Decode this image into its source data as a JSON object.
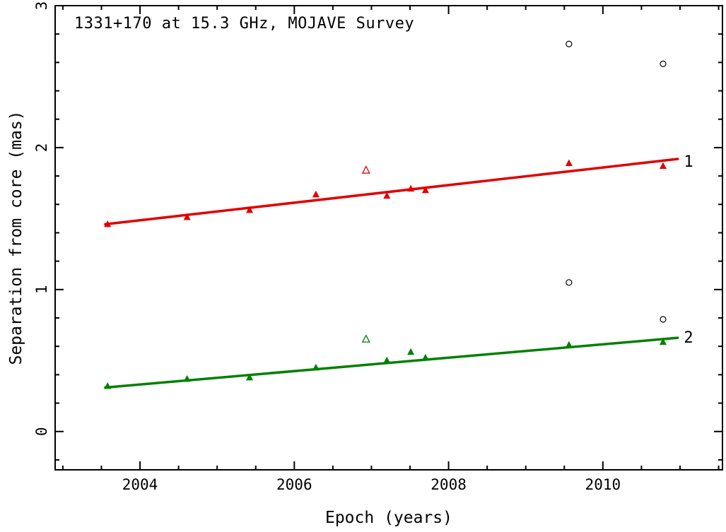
{
  "chart_data": {
    "type": "scatter",
    "title": "1331+170 at 15.3 GHz, MOJAVE Survey",
    "xlabel": "Epoch (years)",
    "ylabel": "Separation from core (mas)",
    "xlim": [
      2002.9,
      2011.55
    ],
    "ylim": [
      -0.27,
      3.0
    ],
    "xticks": [
      2004,
      2006,
      2008,
      2010
    ],
    "yticks": [
      0,
      1,
      2,
      3
    ],
    "x_minor_step": 0.5,
    "y_minor_step": 0.2,
    "grid": false,
    "frame_color": "#000000",
    "series": [
      {
        "name": "component-1",
        "color": "#e00000",
        "marker": "filled-triangle",
        "points": [
          [
            2003.58,
            1.46
          ],
          [
            2004.61,
            1.51
          ],
          [
            2005.42,
            1.56
          ],
          [
            2006.28,
            1.67
          ],
          [
            2007.2,
            1.66
          ],
          [
            2007.51,
            1.71
          ],
          [
            2007.7,
            1.7
          ],
          [
            2009.56,
            1.89
          ],
          [
            2010.78,
            1.87
          ]
        ],
        "fit_line": {
          "x": [
            2003.55,
            2010.97
          ],
          "y": [
            1.46,
            1.92
          ]
        },
        "label": "1",
        "label_pos": [
          2011.05,
          1.9
        ]
      },
      {
        "name": "component-1-unflagged",
        "color": "#e00000",
        "marker": "open-triangle",
        "points": [
          [
            2006.93,
            1.84
          ]
        ]
      },
      {
        "name": "component-2",
        "color": "#008000",
        "marker": "filled-triangle",
        "points": [
          [
            2003.58,
            0.32
          ],
          [
            2004.61,
            0.37
          ],
          [
            2005.42,
            0.38
          ],
          [
            2006.28,
            0.45
          ],
          [
            2007.2,
            0.5
          ],
          [
            2007.51,
            0.56
          ],
          [
            2007.7,
            0.52
          ],
          [
            2009.56,
            0.61
          ],
          [
            2010.78,
            0.63
          ]
        ],
        "fit_line": {
          "x": [
            2003.55,
            2010.97
          ],
          "y": [
            0.31,
            0.66
          ]
        },
        "label": "2",
        "label_pos": [
          2011.05,
          0.66
        ]
      },
      {
        "name": "component-2-unflagged",
        "color": "#008000",
        "marker": "open-triangle",
        "points": [
          [
            2006.93,
            0.65
          ]
        ]
      },
      {
        "name": "unidentified-features",
        "color": "#000000",
        "marker": "open-circle",
        "points": [
          [
            2009.56,
            2.73
          ],
          [
            2010.78,
            2.59
          ],
          [
            2009.56,
            1.05
          ],
          [
            2010.78,
            0.79
          ]
        ]
      }
    ]
  }
}
